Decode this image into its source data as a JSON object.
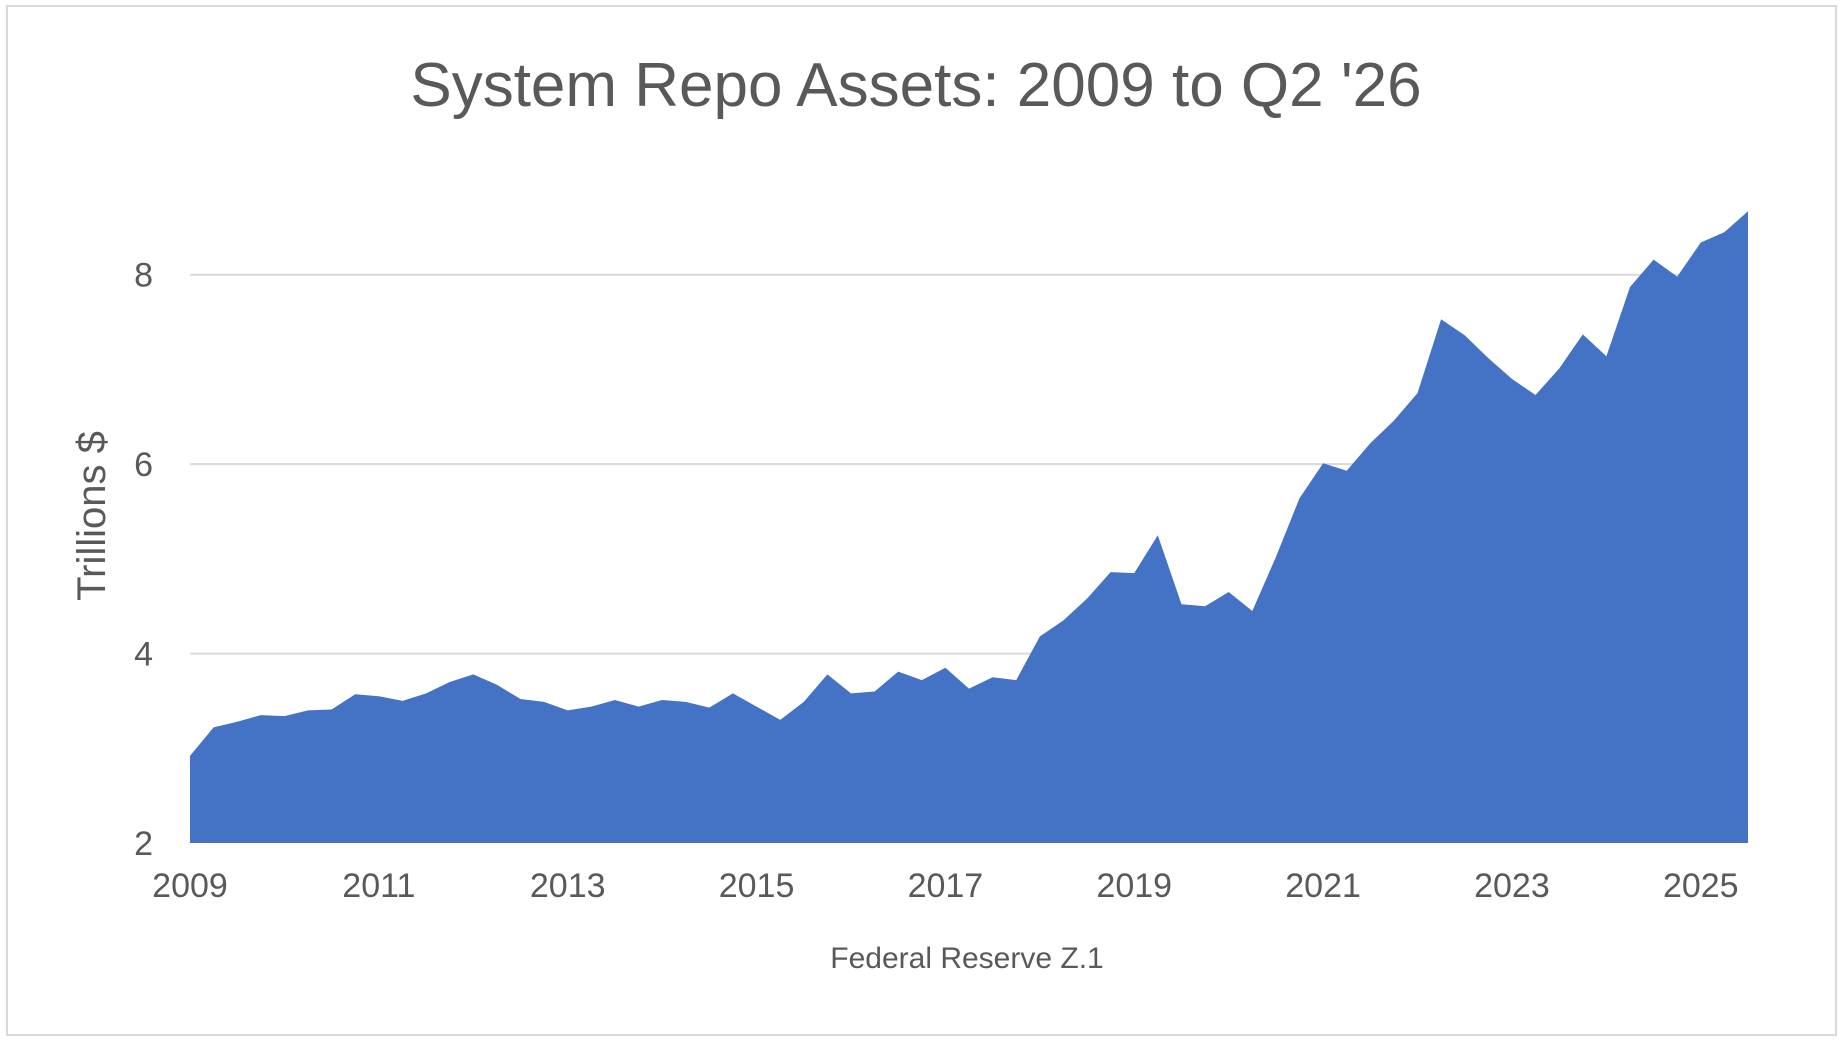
{
  "chart_data": {
    "type": "area",
    "title": "System Repo Assets: 2009 to Q2 '26",
    "ylabel": "Trillions $",
    "xlabel": "Federal Reserve Z.1",
    "ylim": [
      2,
      9
    ],
    "yticks": [
      2,
      4,
      6,
      8
    ],
    "xlim": [
      2009,
      2025.5
    ],
    "xticks": [
      2009,
      2011,
      2013,
      2015,
      2017,
      2019,
      2021,
      2023,
      2025
    ],
    "grid": true,
    "color": "#4472C4",
    "series": [
      {
        "x": [
          2009.0,
          2009.25,
          2009.5,
          2009.75,
          2010.0,
          2010.25,
          2010.5,
          2010.75,
          2011.0,
          2011.25,
          2011.5,
          2011.75,
          2012.0,
          2012.25,
          2012.5,
          2012.75,
          2013.0,
          2013.25,
          2013.5,
          2013.75,
          2014.0,
          2014.25,
          2014.5,
          2014.75,
          2015.0,
          2015.25,
          2015.5,
          2015.75,
          2016.0,
          2016.25,
          2016.5,
          2016.75,
          2017.0,
          2017.25,
          2017.5,
          2017.75,
          2018.0,
          2018.25,
          2018.5,
          2018.75,
          2019.0,
          2019.25,
          2019.5,
          2019.75,
          2020.0,
          2020.25,
          2020.5,
          2020.75,
          2021.0,
          2021.25,
          2021.5,
          2021.75,
          2022.0,
          2022.25,
          2022.5,
          2022.75,
          2023.0,
          2023.25,
          2023.5,
          2023.75,
          2024.0,
          2024.25,
          2024.5,
          2024.75,
          2025.0,
          2025.25,
          2025.5
        ],
        "values": [
          2.92,
          3.22,
          3.28,
          3.35,
          3.34,
          3.4,
          3.41,
          3.57,
          3.55,
          3.5,
          3.58,
          3.7,
          3.78,
          3.67,
          3.52,
          3.49,
          3.4,
          3.44,
          3.51,
          3.44,
          3.51,
          3.49,
          3.43,
          3.58,
          3.44,
          3.3,
          3.49,
          3.78,
          3.58,
          3.6,
          3.81,
          3.72,
          3.85,
          3.63,
          3.75,
          3.72,
          4.18,
          4.35,
          4.58,
          4.86,
          4.85,
          5.25,
          4.52,
          4.5,
          4.65,
          4.45,
          5.02,
          5.64,
          6.01,
          5.93,
          6.22,
          6.46,
          6.75,
          7.53,
          7.36,
          7.12,
          6.9,
          6.73,
          7.01,
          7.37,
          7.14,
          7.87,
          8.16,
          7.98,
          8.34,
          8.45,
          8.67
        ]
      }
    ]
  }
}
